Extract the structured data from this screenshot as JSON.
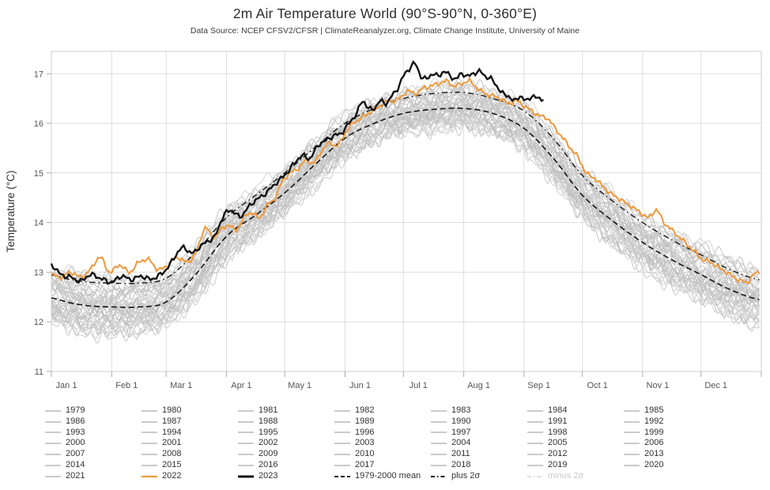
{
  "header": {
    "title": "2m Air Temperature World (90°S-90°N, 0-360°E)",
    "subtitle": "Data Source: NCEP CFSV2/CFSR | ClimateReanalyzer.org, Climate Change Institute, University of Maine"
  },
  "colors": {
    "accent_2022": "#ec9b41",
    "accent_2023": "#141414",
    "grey_year_lines": [
      "#c3c3c3",
      "#cbcbcb",
      "#d2d2d2",
      "#bdbdbd",
      "#d6d6d6"
    ],
    "mean_line": "#141414",
    "plus2s_line": "#141414",
    "minus2s_disabled": "#d2d2d2",
    "grid": "#dedede",
    "frame": "#cfcfcf",
    "tick": "#aaaaaa",
    "tick_text": "#555555",
    "axis_title_text": "#333333",
    "legend_text": "#333333",
    "legend_disabled_text": "#c9c9c9"
  },
  "chart_data": {
    "type": "line",
    "title": "2m Air Temperature World (90°S-90°N, 0-360°E)",
    "subtitle": "Data Source: NCEP CFSV2/CFSR | ClimateReanalyzer.org, Climate Change Institute, University of Maine",
    "xlabel": "",
    "ylabel": "Temperature (°C)",
    "ylim": [
      11,
      17.45
    ],
    "y_ticks": [
      11,
      12,
      13,
      14,
      15,
      16,
      17
    ],
    "x_ticks": [
      "Jan 1",
      "Feb 1",
      "Mar 1",
      "Apr 1",
      "May 1",
      "Jun 1",
      "Jul 1",
      "Aug 1",
      "Sep 1",
      "Oct 1",
      "Nov 1",
      "Dec 1"
    ],
    "x_tick_days": [
      0,
      31,
      59,
      90,
      120,
      151,
      181,
      212,
      243,
      273,
      304,
      334
    ],
    "x_domain_days": [
      0,
      365
    ],
    "grid": true,
    "legend_position": "bottom",
    "series": [
      {
        "name": "1979-2000 mean",
        "style": "mean",
        "dashed": true,
        "days": [
          0,
          10,
          20,
          31,
          45,
          59,
          74,
          90,
          105,
          120,
          135,
          151,
          166,
          181,
          196,
          212,
          227,
          243,
          258,
          273,
          288,
          304,
          319,
          334,
          349,
          364
        ],
        "temps": [
          12.48,
          12.38,
          12.32,
          12.3,
          12.3,
          12.4,
          12.95,
          13.72,
          14.15,
          14.6,
          15.15,
          15.7,
          16.0,
          16.2,
          16.28,
          16.3,
          16.2,
          15.9,
          15.3,
          14.55,
          14.05,
          13.6,
          13.25,
          12.95,
          12.65,
          12.45
        ]
      },
      {
        "name": "plus 2σ",
        "style": "plus2s",
        "dashed": true,
        "days": [
          0,
          10,
          20,
          31,
          45,
          59,
          74,
          90,
          105,
          120,
          135,
          151,
          166,
          181,
          196,
          212,
          227,
          243,
          258,
          273,
          288,
          304,
          319,
          334,
          349,
          364
        ],
        "temps": [
          12.95,
          12.85,
          12.8,
          12.78,
          12.78,
          12.88,
          13.4,
          14.1,
          14.55,
          15.0,
          15.5,
          16.0,
          16.3,
          16.5,
          16.6,
          16.62,
          16.5,
          16.25,
          15.7,
          14.95,
          14.45,
          14.0,
          13.65,
          13.35,
          13.05,
          12.85
        ]
      },
      {
        "name": "2022",
        "style": "s2022",
        "days": [
          0,
          5,
          10,
          15,
          20,
          25,
          30,
          35,
          40,
          45,
          50,
          55,
          60,
          65,
          70,
          75,
          79,
          83,
          87,
          91,
          95,
          99,
          103,
          107,
          111,
          115,
          119,
          123,
          127,
          131,
          135,
          139,
          143,
          147,
          151,
          155,
          159,
          163,
          167,
          171,
          175,
          179,
          183,
          187,
          191,
          195,
          199,
          203,
          207,
          211,
          215,
          219,
          223,
          227,
          231,
          235,
          239,
          243,
          247,
          251,
          255,
          259,
          263,
          267,
          271,
          275,
          279,
          283,
          287,
          291,
          295,
          299,
          303,
          307,
          311,
          315,
          319,
          323,
          327,
          331,
          335,
          339,
          343,
          347,
          351,
          355,
          358,
          361,
          364
        ],
        "temps": [
          12.95,
          12.9,
          13.0,
          12.9,
          13.05,
          13.3,
          13.0,
          13.15,
          13.0,
          13.2,
          13.25,
          13.05,
          13.15,
          13.3,
          13.2,
          13.45,
          13.9,
          13.7,
          13.85,
          13.95,
          13.85,
          14.1,
          14.2,
          14.1,
          14.35,
          14.5,
          14.85,
          15.0,
          15.1,
          15.25,
          15.2,
          15.45,
          15.6,
          15.55,
          15.8,
          16.0,
          16.1,
          16.2,
          16.3,
          16.4,
          16.45,
          16.5,
          16.65,
          16.6,
          16.7,
          16.75,
          16.8,
          16.85,
          16.75,
          16.8,
          16.85,
          16.7,
          16.6,
          16.55,
          16.5,
          16.4,
          16.45,
          16.35,
          16.25,
          16.15,
          16.1,
          15.9,
          15.7,
          15.5,
          15.3,
          15.0,
          14.9,
          14.75,
          14.6,
          14.5,
          14.4,
          14.3,
          14.2,
          14.1,
          14.25,
          14.0,
          13.85,
          13.7,
          13.55,
          13.4,
          13.25,
          13.2,
          13.1,
          13.0,
          12.9,
          12.82,
          12.8,
          12.95,
          13.0
        ]
      },
      {
        "name": "2023",
        "style": "s2023",
        "ends_day": 253,
        "days": [
          0,
          5,
          10,
          15,
          20,
          25,
          31,
          36,
          41,
          46,
          51,
          56,
          60,
          64,
          68,
          72,
          76,
          80,
          84,
          88,
          92,
          97,
          101,
          105,
          109,
          113,
          117,
          121,
          125,
          129,
          133,
          137,
          141,
          145,
          149,
          153,
          157,
          160,
          163,
          166,
          169,
          172,
          175,
          178,
          181,
          184,
          187,
          190,
          193,
          196,
          199,
          202,
          205,
          208,
          211,
          214,
          217,
          220,
          223,
          226,
          229,
          232,
          235,
          238,
          241,
          244,
          247,
          250,
          253
        ],
        "temps": [
          13.15,
          12.95,
          12.9,
          12.82,
          12.95,
          12.88,
          12.8,
          12.92,
          12.85,
          12.92,
          12.86,
          12.95,
          13.1,
          13.35,
          13.5,
          13.38,
          13.5,
          13.62,
          13.72,
          14.1,
          14.25,
          14.12,
          14.3,
          14.45,
          14.55,
          14.7,
          14.85,
          15.0,
          15.2,
          15.35,
          15.3,
          15.55,
          15.65,
          15.75,
          15.8,
          16.0,
          16.2,
          16.45,
          16.3,
          16.3,
          16.45,
          16.4,
          16.55,
          16.7,
          16.95,
          17.1,
          17.2,
          16.95,
          16.9,
          17.0,
          16.95,
          17.05,
          16.95,
          16.9,
          17.0,
          16.95,
          17.0,
          17.05,
          16.95,
          16.9,
          16.75,
          16.6,
          16.55,
          16.45,
          16.55,
          16.45,
          16.55,
          16.5,
          16.5
        ]
      }
    ],
    "background_years": {
      "note": "Years 1979-2021 drawn as thin grey daily lines forming a band around the 1979-2000 mean; older years lie lower, recent years higher.",
      "start_year": 1979,
      "end_year": 2021,
      "offset_range": [
        -0.45,
        0.47
      ],
      "winter_spread_scale": 1.16,
      "summer_spread_scale": 0.84
    }
  },
  "legend": {
    "rows": 7,
    "items": [
      {
        "label": "1979",
        "style": "year"
      },
      {
        "label": "1986",
        "style": "year"
      },
      {
        "label": "1993",
        "style": "year"
      },
      {
        "label": "2000",
        "style": "year"
      },
      {
        "label": "2007",
        "style": "year"
      },
      {
        "label": "2014",
        "style": "year"
      },
      {
        "label": "2021",
        "style": "year"
      },
      {
        "label": "1980",
        "style": "year"
      },
      {
        "label": "1987",
        "style": "year"
      },
      {
        "label": "1994",
        "style": "year"
      },
      {
        "label": "2001",
        "style": "year"
      },
      {
        "label": "2008",
        "style": "year"
      },
      {
        "label": "2015",
        "style": "year"
      },
      {
        "label": "2022",
        "style": "s2022"
      },
      {
        "label": "1981",
        "style": "year"
      },
      {
        "label": "1988",
        "style": "year"
      },
      {
        "label": "1995",
        "style": "year"
      },
      {
        "label": "2002",
        "style": "year"
      },
      {
        "label": "2009",
        "style": "year"
      },
      {
        "label": "2016",
        "style": "year"
      },
      {
        "label": "2023",
        "style": "s2023"
      },
      {
        "label": "1982",
        "style": "year"
      },
      {
        "label": "1989",
        "style": "year"
      },
      {
        "label": "1996",
        "style": "year"
      },
      {
        "label": "2003",
        "style": "year"
      },
      {
        "label": "2010",
        "style": "year"
      },
      {
        "label": "2017",
        "style": "year"
      },
      {
        "label": "1979-2000 mean",
        "style": "mean"
      },
      {
        "label": "1983",
        "style": "year"
      },
      {
        "label": "1990",
        "style": "year"
      },
      {
        "label": "1997",
        "style": "year"
      },
      {
        "label": "2004",
        "style": "year"
      },
      {
        "label": "2011",
        "style": "year"
      },
      {
        "label": "2018",
        "style": "year"
      },
      {
        "label": "plus 2σ",
        "style": "plus2s"
      },
      {
        "label": "1984",
        "style": "year"
      },
      {
        "label": "1991",
        "style": "year"
      },
      {
        "label": "1998",
        "style": "year"
      },
      {
        "label": "2005",
        "style": "year"
      },
      {
        "label": "2012",
        "style": "year"
      },
      {
        "label": "2019",
        "style": "year"
      },
      {
        "label": "minus 2σ",
        "style": "minus2s",
        "disabled": true
      },
      {
        "label": "1985",
        "style": "year"
      },
      {
        "label": "1992",
        "style": "year"
      },
      {
        "label": "1999",
        "style": "year"
      },
      {
        "label": "2006",
        "style": "year"
      },
      {
        "label": "2013",
        "style": "year"
      },
      {
        "label": "2020",
        "style": "year"
      }
    ]
  }
}
